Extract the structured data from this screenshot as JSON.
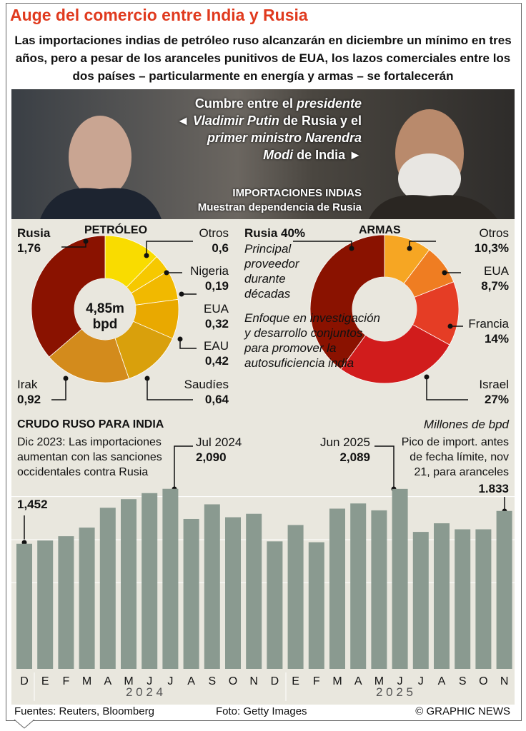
{
  "title": "Auge del comercio entre India y Rusia",
  "subtitle": "Las importaciones indias de petróleo ruso alcanzarán en diciembre un mínimo en tres años, pero a pesar de los aranceles punitivos de EUA, los lazos comerciales entre los dos países – particularmente en energía y armas – se fortalecerán",
  "photo": {
    "caption_1": "Cumbre entre el",
    "caption_2": "presidente",
    "caption_3": "◄ Vladimir Putin",
    "caption_4": "de Rusia y el",
    "caption_5": "primer ministro Narendra",
    "caption_6": "Modi",
    "caption_7": "de India ►",
    "imports_title": "IMPORTACIONES INDIAS",
    "imports_sub": "Muestran dependencia de Rusia"
  },
  "oil": {
    "title": "PETRÓLEO",
    "center_1": "4,85m",
    "center_2": "bpd",
    "labels": [
      {
        "name": "Otros",
        "value": "0,6"
      },
      {
        "name": "Nigeria",
        "value": "0,19"
      },
      {
        "name": "EUA",
        "value": "0,32"
      },
      {
        "name": "EAU",
        "value": "0,42"
      },
      {
        "name": "Saudíes",
        "value": "0,64"
      },
      {
        "name": "Irak",
        "value": "0,92"
      },
      {
        "name": "Rusia",
        "value": "1,76"
      }
    ]
  },
  "arms": {
    "title": "ARMAS",
    "russia_label": "Rusia 40%",
    "note_1": "Principal proveedor durante décadas",
    "note_2": "Enfoque en investigación y desarrollo conjuntos para promover la autosuficiencia india",
    "labels": [
      {
        "name": "Otros",
        "value": "10,3%"
      },
      {
        "name": "EUA",
        "value": "8,7%"
      },
      {
        "name": "Francia",
        "value": "14%"
      },
      {
        "name": "Israel",
        "value": "27%"
      }
    ]
  },
  "bars": {
    "title": "CRUDO RUSO PARA INDIA",
    "unit": "Millones de bpd",
    "ann_dec": "Dic 2023: Las importaciones aumentan con las sanciones occidentales contra Rusia",
    "ann_dec_val": "1,452",
    "ann_jul": "Jul 2024",
    "ann_jul_val": "2,090",
    "ann_jun": "Jun 2025",
    "ann_jun_val": "2,089",
    "ann_nov": "Pico de  import. antes de fecha límite, nov 21, para aranceles",
    "ann_nov_val": "1.833",
    "year_1": "2 0 2 4",
    "year_2": "2 0 2 5"
  },
  "footer": {
    "sources": "Fuentes: Reuters, Bloomberg",
    "photo": "Foto: Getty Images",
    "credit": "© GRAPHIC NEWS"
  },
  "chart_data": [
    {
      "type": "pie",
      "title": "PETRÓLEO",
      "unit": "millones bpd",
      "total": 4.85,
      "slices": [
        {
          "name": "Otros",
          "value": 0.6,
          "color": "#f9dc00"
        },
        {
          "name": "Nigeria",
          "value": 0.19,
          "color": "#f6c800"
        },
        {
          "name": "EUA",
          "value": 0.32,
          "color": "#f1b900"
        },
        {
          "name": "EAU",
          "value": 0.42,
          "color": "#e9a900"
        },
        {
          "name": "Saudíes",
          "value": 0.64,
          "color": "#d9a00c"
        },
        {
          "name": "Irak",
          "value": 0.92,
          "color": "#d38b1c"
        },
        {
          "name": "Rusia",
          "value": 1.76,
          "color": "#8a1200"
        }
      ]
    },
    {
      "type": "pie",
      "title": "ARMAS",
      "unit": "%",
      "slices": [
        {
          "name": "Otros",
          "value": 10.3,
          "color": "#f6a623"
        },
        {
          "name": "EUA",
          "value": 8.7,
          "color": "#ef7d22"
        },
        {
          "name": "Francia",
          "value": 14,
          "color": "#e53d25"
        },
        {
          "name": "Israel",
          "value": 27,
          "color": "#d11c1c"
        },
        {
          "name": "Rusia",
          "value": 40,
          "color": "#8a1200"
        }
      ]
    },
    {
      "type": "bar",
      "title": "CRUDO RUSO PARA INDIA",
      "ylabel": "Millones de bpd",
      "ylim": [
        0,
        2.3
      ],
      "color": "#8a9a90",
      "categories": [
        "D",
        "E",
        "F",
        "M",
        "A",
        "M",
        "J",
        "J",
        "A",
        "S",
        "O",
        "N",
        "D",
        "E",
        "F",
        "M",
        "A",
        "M",
        "J",
        "J",
        "A",
        "S",
        "O",
        "N"
      ],
      "values": [
        1.452,
        1.49,
        1.54,
        1.64,
        1.87,
        1.97,
        2.04,
        2.09,
        1.74,
        1.91,
        1.76,
        1.8,
        1.48,
        1.67,
        1.47,
        1.86,
        1.92,
        1.84,
        2.089,
        1.59,
        1.69,
        1.62,
        1.62,
        1.833
      ]
    }
  ]
}
